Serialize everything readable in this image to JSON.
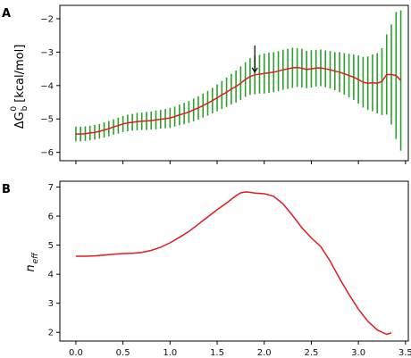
{
  "chart_data": [
    {
      "type": "line",
      "panel_label": "A",
      "ylabel": {
        "main": "ΔG",
        "sub": "b",
        "sup": "0",
        "rest": " [kcal/mol]"
      },
      "xlim": [
        -0.17,
        3.53
      ],
      "ylim": [
        -6.25,
        -1.6
      ],
      "x_ticks": [
        0.0,
        0.5,
        1.0,
        1.5,
        2.0,
        2.5,
        3.0,
        3.5
      ],
      "y_ticks": [
        -6,
        -5,
        -4,
        -3,
        -2
      ],
      "y_tick_labels": [
        "−6",
        "−5",
        "−4",
        "−3",
        "−2"
      ],
      "colors": {
        "mean_line": "#e41a1c",
        "error_bars": "#2ca02c"
      },
      "annotation": {
        "type": "arrow",
        "x": 1.9,
        "y_from": -2.8,
        "y_to": -3.6
      },
      "series": [
        {
          "x": [
            0.0,
            0.05,
            0.1,
            0.15,
            0.2,
            0.25,
            0.3,
            0.35,
            0.4,
            0.45,
            0.5,
            0.55,
            0.6,
            0.65,
            0.7,
            0.75,
            0.8,
            0.85,
            0.9,
            0.95,
            1.0,
            1.05,
            1.1,
            1.15,
            1.2,
            1.25,
            1.3,
            1.35,
            1.4,
            1.45,
            1.5,
            1.55,
            1.6,
            1.65,
            1.7,
            1.75,
            1.8,
            1.85,
            1.9,
            1.95,
            2.0,
            2.05,
            2.1,
            2.15,
            2.2,
            2.25,
            2.3,
            2.35,
            2.4,
            2.45,
            2.5,
            2.55,
            2.6,
            2.65,
            2.7,
            2.75,
            2.8,
            2.85,
            2.9,
            2.95,
            3.0,
            3.05,
            3.1,
            3.15,
            3.2,
            3.25,
            3.3,
            3.35,
            3.4,
            3.45
          ],
          "y": [
            -5.45,
            -5.45,
            -5.44,
            -5.42,
            -5.4,
            -5.37,
            -5.33,
            -5.29,
            -5.24,
            -5.2,
            -5.15,
            -5.12,
            -5.1,
            -5.08,
            -5.07,
            -5.06,
            -5.05,
            -5.03,
            -5.01,
            -4.99,
            -4.97,
            -4.93,
            -4.88,
            -4.84,
            -4.79,
            -4.73,
            -4.67,
            -4.6,
            -4.53,
            -4.45,
            -4.37,
            -4.28,
            -4.2,
            -4.11,
            -4.03,
            -3.93,
            -3.82,
            -3.73,
            -3.68,
            -3.66,
            -3.64,
            -3.62,
            -3.6,
            -3.57,
            -3.53,
            -3.5,
            -3.47,
            -3.46,
            -3.48,
            -3.52,
            -3.5,
            -3.48,
            -3.47,
            -3.5,
            -3.53,
            -3.57,
            -3.6,
            -3.65,
            -3.7,
            -3.75,
            -3.82,
            -3.9,
            -3.93,
            -3.92,
            -3.93,
            -3.88,
            -3.67,
            -3.67,
            -3.7,
            -3.85
          ],
          "err": [
            0.22,
            0.22,
            0.22,
            0.22,
            0.22,
            0.22,
            0.23,
            0.23,
            0.23,
            0.24,
            0.24,
            0.25,
            0.25,
            0.26,
            0.26,
            0.27,
            0.27,
            0.28,
            0.28,
            0.29,
            0.3,
            0.3,
            0.31,
            0.32,
            0.33,
            0.34,
            0.35,
            0.36,
            0.37,
            0.38,
            0.4,
            0.42,
            0.44,
            0.46,
            0.48,
            0.5,
            0.52,
            0.55,
            0.58,
            0.58,
            0.6,
            0.6,
            0.6,
            0.6,
            0.6,
            0.6,
            0.6,
            0.58,
            0.58,
            0.56,
            0.56,
            0.55,
            0.55,
            0.55,
            0.56,
            0.57,
            0.6,
            0.62,
            0.65,
            0.68,
            0.72,
            0.76,
            0.8,
            0.85,
            0.9,
            1.0,
            1.2,
            1.5,
            1.9,
            2.1
          ]
        }
      ]
    },
    {
      "type": "line",
      "panel_label": "B",
      "ylabel": {
        "main": "n",
        "sub": "eff"
      },
      "xlim": [
        -0.17,
        3.53
      ],
      "ylim": [
        1.7,
        7.2
      ],
      "x_ticks": [
        0.0,
        0.5,
        1.0,
        1.5,
        2.0,
        2.5,
        3.0,
        3.5
      ],
      "x_tick_labels": [
        "0.0",
        "0.5",
        "1.0",
        "1.5",
        "2.0",
        "2.5",
        "3.0",
        "3.5"
      ],
      "y_ticks": [
        2,
        3,
        4,
        5,
        6,
        7
      ],
      "y_tick_labels": [
        "2",
        "3",
        "4",
        "5",
        "6",
        "7"
      ],
      "colors": {
        "line": "#e41a1c"
      },
      "series": [
        {
          "x": [
            0.0,
            0.1,
            0.2,
            0.3,
            0.4,
            0.5,
            0.6,
            0.7,
            0.8,
            0.9,
            1.0,
            1.1,
            1.2,
            1.3,
            1.4,
            1.5,
            1.6,
            1.7,
            1.75,
            1.8,
            1.85,
            1.9,
            2.0,
            2.05,
            2.1,
            2.2,
            2.3,
            2.4,
            2.5,
            2.6,
            2.7,
            2.8,
            2.9,
            3.0,
            3.1,
            3.2,
            3.3,
            3.35
          ],
          "y": [
            4.62,
            4.62,
            4.63,
            4.66,
            4.69,
            4.71,
            4.72,
            4.75,
            4.82,
            4.93,
            5.08,
            5.27,
            5.47,
            5.72,
            5.97,
            6.22,
            6.45,
            6.7,
            6.8,
            6.83,
            6.82,
            6.79,
            6.77,
            6.73,
            6.68,
            6.42,
            6.02,
            5.6,
            5.25,
            4.95,
            4.45,
            3.85,
            3.3,
            2.8,
            2.38,
            2.08,
            1.93,
            1.98
          ]
        }
      ]
    }
  ]
}
